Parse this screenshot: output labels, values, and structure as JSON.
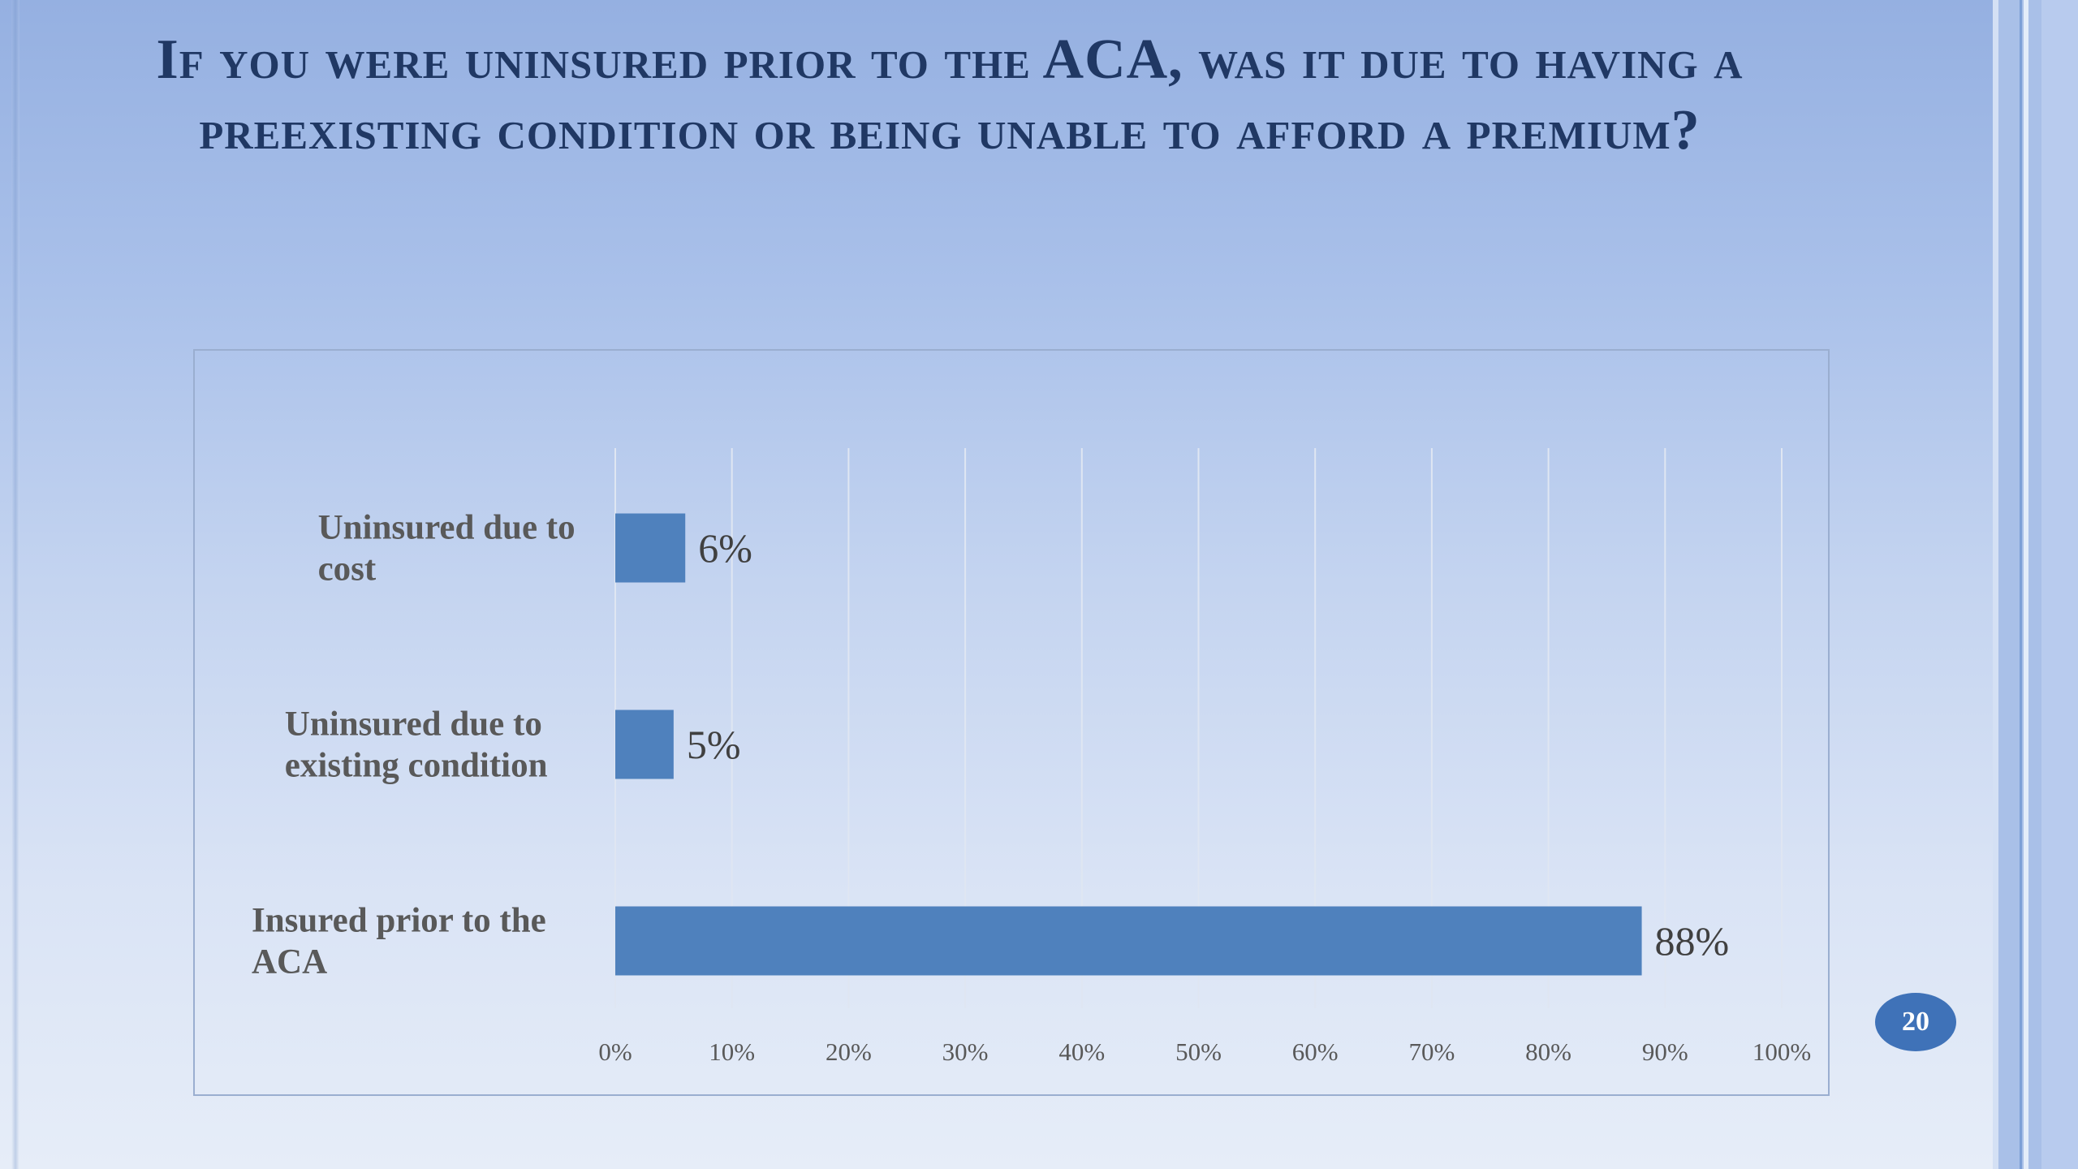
{
  "slide": {
    "title": "If you were uninsured prior to the ACA, was it due to having a preexisting condition or being unable to afford a premium?",
    "page_number": "20",
    "colors": {
      "title": "#203864",
      "bar": "#4f81bd",
      "badge": "#3f72b8"
    }
  },
  "chart_data": {
    "type": "bar",
    "orientation": "horizontal",
    "categories": [
      [
        "Uninsured due to",
        "cost"
      ],
      [
        "Uninsured due to",
        "existing condition"
      ],
      [
        "Insured prior to the",
        "ACA"
      ]
    ],
    "values": [
      6,
      5,
      88
    ],
    "value_labels": [
      "6%",
      "5%",
      "88%"
    ],
    "xlim": [
      0,
      100
    ],
    "x_ticks": [
      0,
      10,
      20,
      30,
      40,
      50,
      60,
      70,
      80,
      90,
      100
    ],
    "x_tick_labels": [
      "0%",
      "10%",
      "20%",
      "30%",
      "40%",
      "50%",
      "60%",
      "70%",
      "80%",
      "90%",
      "100%"
    ],
    "grid": true,
    "legend": false
  }
}
